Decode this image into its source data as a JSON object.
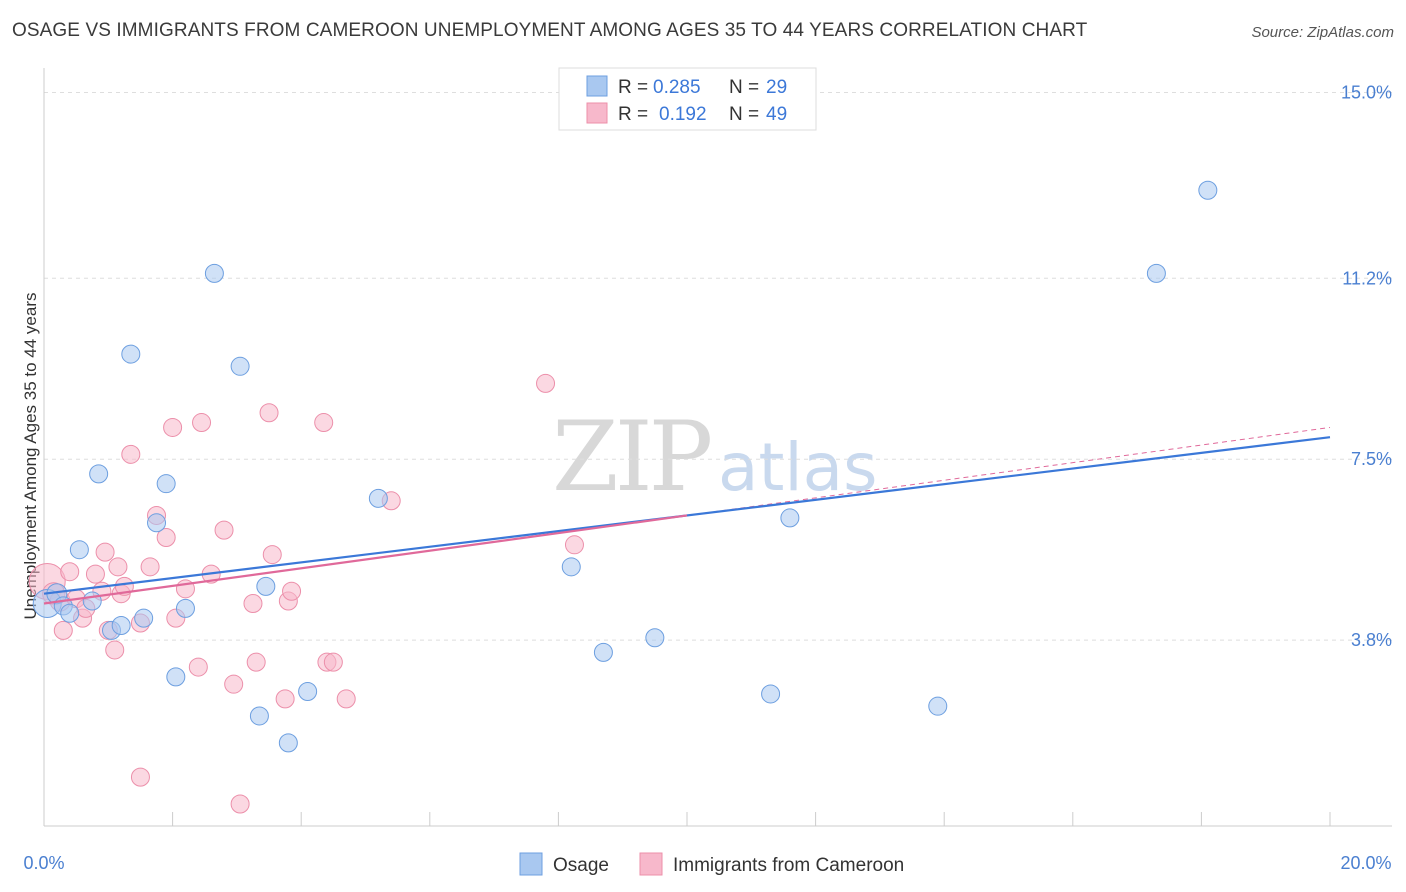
{
  "title": "OSAGE VS IMMIGRANTS FROM CAMEROON UNEMPLOYMENT AMONG AGES 35 TO 44 YEARS CORRELATION CHART",
  "source": "Source: ZipAtlas.com",
  "watermark": {
    "zip": "ZIP",
    "atlas": "atlas"
  },
  "chart_data": {
    "type": "scatter",
    "title": "OSAGE VS IMMIGRANTS FROM CAMEROON UNEMPLOYMENT AMONG AGES 35 TO 44 YEARS CORRELATION CHART",
    "xlabel": "",
    "ylabel": "Unemployment Among Ages 35 to 44 years",
    "xlim": [
      0,
      20
    ],
    "ylim": [
      0,
      15.5
    ],
    "x_tick_labels": {
      "left": "0.0%",
      "right": "20.0%"
    },
    "y_ticks": [
      3.8,
      7.5,
      11.2,
      15.0
    ],
    "y_tick_labels": [
      "3.8%",
      "7.5%",
      "11.2%",
      "15.0%"
    ],
    "grid": true,
    "legend_position": "top-center",
    "series": [
      {
        "name": "Osage",
        "color": "#a9c8f0",
        "edge": "#6d9fe0",
        "line_color": "#3b78d8",
        "R": "0.285",
        "N": "29",
        "trend": {
          "x": [
            0,
            20
          ],
          "y": [
            4.75,
            7.95
          ]
        },
        "points": [
          [
            0.05,
            4.55,
            14
          ],
          [
            0.2,
            4.75,
            10
          ],
          [
            0.3,
            4.5,
            9
          ],
          [
            0.4,
            4.35,
            9
          ],
          [
            0.55,
            5.65,
            9
          ],
          [
            0.75,
            4.6,
            9
          ],
          [
            0.85,
            7.2,
            9
          ],
          [
            1.05,
            4.0,
            9
          ],
          [
            1.2,
            4.1,
            9
          ],
          [
            1.35,
            9.65,
            9
          ],
          [
            1.55,
            4.25,
            9
          ],
          [
            1.75,
            6.2,
            9
          ],
          [
            1.9,
            7.0,
            9
          ],
          [
            2.05,
            3.05,
            9
          ],
          [
            2.2,
            4.45,
            9
          ],
          [
            2.65,
            11.3,
            9
          ],
          [
            3.05,
            9.4,
            9
          ],
          [
            3.35,
            2.25,
            9
          ],
          [
            3.45,
            4.9,
            9
          ],
          [
            3.8,
            1.7,
            9
          ],
          [
            4.1,
            2.75,
            9
          ],
          [
            5.2,
            6.7,
            9
          ],
          [
            8.2,
            5.3,
            9
          ],
          [
            8.7,
            3.55,
            9
          ],
          [
            9.5,
            3.85,
            9
          ],
          [
            11.3,
            2.7,
            9
          ],
          [
            11.6,
            6.3,
            9
          ],
          [
            13.9,
            2.45,
            9
          ],
          [
            17.3,
            11.3,
            9
          ],
          [
            18.1,
            13.0,
            9
          ]
        ]
      },
      {
        "name": "Immigrants from Cameroon",
        "color": "#f7b8cb",
        "edge": "#ec8faa",
        "line_color": "#e0699a",
        "R": "0.192",
        "N": "49",
        "trend": {
          "x": [
            0,
            10.0
          ],
          "y": [
            4.55,
            6.35
          ]
        },
        "trend_dashed": {
          "x": [
            10.0,
            20
          ],
          "y": [
            6.35,
            8.15
          ]
        },
        "points": [
          [
            0.05,
            5.0,
            18
          ],
          [
            0.15,
            4.75,
            11
          ],
          [
            0.25,
            4.6,
            10
          ],
          [
            0.3,
            4.0,
            9
          ],
          [
            0.4,
            5.2,
            9
          ],
          [
            0.5,
            4.65,
            9
          ],
          [
            0.6,
            4.25,
            9
          ],
          [
            0.65,
            4.45,
            9
          ],
          [
            0.8,
            5.15,
            9
          ],
          [
            0.9,
            4.8,
            9
          ],
          [
            0.95,
            5.6,
            9
          ],
          [
            1.0,
            4.0,
            9
          ],
          [
            1.1,
            3.6,
            9
          ],
          [
            1.15,
            5.3,
            9
          ],
          [
            1.2,
            4.75,
            9
          ],
          [
            1.25,
            4.9,
            9
          ],
          [
            1.35,
            7.6,
            9
          ],
          [
            1.5,
            4.15,
            9
          ],
          [
            1.5,
            1.0,
            9
          ],
          [
            1.65,
            5.3,
            9
          ],
          [
            1.75,
            6.35,
            9
          ],
          [
            1.9,
            5.9,
            9
          ],
          [
            2.0,
            8.15,
            9
          ],
          [
            2.05,
            4.25,
            9
          ],
          [
            2.2,
            4.85,
            9
          ],
          [
            2.4,
            3.25,
            9
          ],
          [
            2.45,
            8.25,
            9
          ],
          [
            2.6,
            5.15,
            9
          ],
          [
            2.8,
            6.05,
            9
          ],
          [
            2.95,
            2.9,
            9
          ],
          [
            3.05,
            0.45,
            9
          ],
          [
            3.25,
            4.55,
            9
          ],
          [
            3.3,
            3.35,
            9
          ],
          [
            3.5,
            8.45,
            9
          ],
          [
            3.55,
            5.55,
            9
          ],
          [
            3.75,
            2.6,
            9
          ],
          [
            3.8,
            4.6,
            9
          ],
          [
            3.85,
            4.8,
            9
          ],
          [
            4.35,
            8.25,
            9
          ],
          [
            4.4,
            3.35,
            9
          ],
          [
            4.5,
            3.35,
            9
          ],
          [
            4.7,
            2.6,
            9
          ],
          [
            5.4,
            6.65,
            9
          ],
          [
            7.8,
            9.05,
            9
          ],
          [
            8.25,
            5.75,
            9
          ]
        ]
      }
    ]
  },
  "legend": {
    "rows": [
      {
        "r_label": "R =",
        "r_value": "0.285",
        "n_label": "N =",
        "n_value": "29"
      },
      {
        "r_label": "R =",
        "r_value": "0.192",
        "n_label": "N =",
        "n_value": "49"
      }
    ]
  },
  "bottom_legend": [
    "Osage",
    "Immigrants from Cameroon"
  ]
}
